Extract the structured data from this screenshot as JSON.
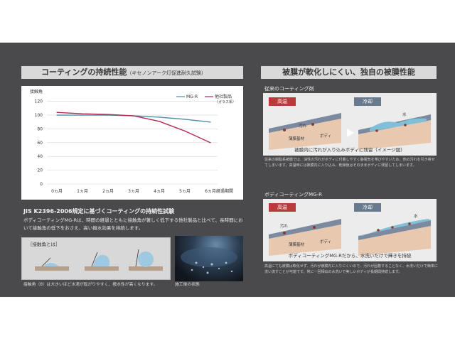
{
  "left": {
    "title": "コーティングの持続性能",
    "title_sub": "（キセノンアーク灯促進耐久試験）",
    "jis_title": "JIS K2396-2006規定に基づくコーティングの持続性試験",
    "jis_body": "ボディコーティングMG-Rは、時間の経過とともに接触角が著しく低下する他社製品と比べて、長時間において接触角の低下をおさえ、高い撥水効果を持続します。",
    "angle_box_title": "［接触角とは］",
    "angle_note": "接触角（θ）は大きいほど水滴が転がりやすく、撥水性が高くなります。",
    "photo_caption": "施工後の状態"
  },
  "chart_data": {
    "type": "line",
    "ylabel": "接触角",
    "xlabel": "経過期間",
    "categories": [
      "0ヵ月",
      "1ヵ月",
      "2ヵ月",
      "3ヵ月",
      "4ヵ月",
      "5ヵ月",
      "6ヵ月"
    ],
    "yticks": [
      0,
      20,
      40,
      60,
      80,
      100,
      120
    ],
    "ylim": [
      0,
      130
    ],
    "grid": true,
    "legend_position": "top-right",
    "series": [
      {
        "name": "MG-R",
        "color": "#4f8ea6",
        "values": [
          100,
          100,
          100,
          99,
          97,
          94,
          90
        ]
      },
      {
        "name": "他社製品",
        "name_sub": "（ガラス系）",
        "color": "#b02a55",
        "values": [
          104,
          102,
          101,
          99,
          91,
          77,
          60
        ]
      }
    ]
  },
  "right": {
    "title": "被膜が軟化しにくい、独自の被膜性能",
    "sec1_label": "従来のコーティング剤",
    "sec1_hot": "高温",
    "sec1_cool": "冷却",
    "sec1_dirt": "汚れ",
    "sec1_base": "薄膜基材",
    "sec1_body": "ボディ",
    "sec1_water": "水",
    "sec1_caption": "被膜内に汚れが入り込みボディに残留（イメージ図）",
    "sec1_note": "従来の樹脂系被膜では、油性の汚れがボディに付着しやすく静電気を帯びやすいため、他の汚れを引き寄せてしまいます。高温時には被膜内に入り込み、乾燥後はそのままボディに残留してしまいます。",
    "sec2_label": "ボディコーティングMG-R",
    "sec2_hot": "高温",
    "sec2_cool": "冷却",
    "sec2_dirt": "汚れ",
    "sec2_base": "薄膜基材",
    "sec2_body": "ボディ",
    "sec2_water": "水",
    "sec2_caption": "ボディコーティングMG-Rだから、水洗いだけで輝きを持続",
    "sec2_note": "高温にても被膜は軟化せず、汚れが被膜内に入りにくいので、汚れが固着することなく、水洗いだけで簡単に洗い流すことが可能です。常に一回相似の水洗いで美しいボディが長期間持続します。"
  }
}
